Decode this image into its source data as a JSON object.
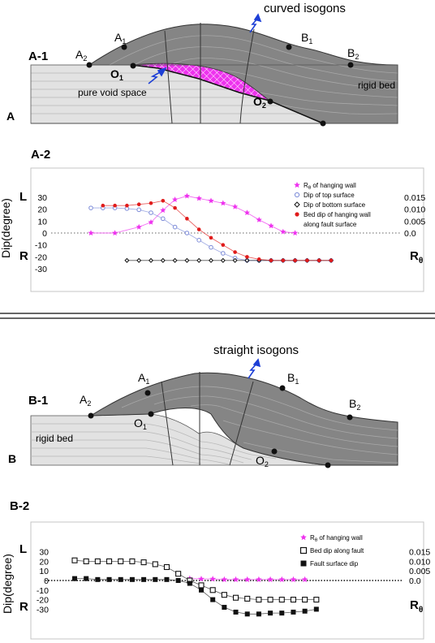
{
  "panel_a": {
    "panel_letter": "A",
    "section_label": "A-1",
    "caption": "curved isogons",
    "void_label": "pure void space",
    "rigid_label": "rigid bed",
    "points": {
      "A1": {
        "base": "A",
        "sub": "1"
      },
      "A2": {
        "base": "A",
        "sub": "2"
      },
      "B1": {
        "base": "B",
        "sub": "1"
      },
      "B2": {
        "base": "B",
        "sub": "2"
      },
      "O1": {
        "base": "O",
        "sub": "1"
      },
      "O2": {
        "base": "O",
        "sub": "2"
      }
    }
  },
  "panel_b": {
    "panel_letter": "B",
    "section_label": "B-1",
    "caption": "straight isogons",
    "rigid_label": "rigid bed",
    "points": {
      "A1": {
        "base": "A",
        "sub": "1"
      },
      "A2": {
        "base": "A",
        "sub": "2"
      },
      "B1": {
        "base": "B",
        "sub": "1"
      },
      "B2": {
        "base": "B",
        "sub": "2"
      },
      "O1": {
        "base": "O",
        "sub": "1"
      },
      "O2": {
        "base": "O",
        "sub": "2"
      }
    }
  },
  "colors": {
    "hanging_wall": "#858585",
    "rigid_bed": "#e2e2e2",
    "void": "#ee33ee",
    "arrow": "#1d3fd6",
    "series_r": "#ee33ee",
    "series_top": "#7b8ad8",
    "series_bed": "#e01b1b",
    "series_bottom": "#111111"
  },
  "chart_data": [
    {
      "id": "A-2",
      "type": "line",
      "title": "A-2",
      "ylabel": "Dip(degree)",
      "ylabel_right_base": "R",
      "ylabel_right_sub": "θ",
      "side_labels": {
        "top": "L",
        "bottom": "R"
      },
      "yticks_left": [
        "30",
        "20",
        "10",
        "0",
        "-10",
        "-20",
        "-30"
      ],
      "yticks_right": [
        "0.015",
        "0.010",
        "0.005",
        "0.0"
      ],
      "ylim": [
        -30,
        30
      ],
      "right_ylim": [
        -0.015,
        0.015
      ],
      "x": [
        0,
        1,
        2,
        3,
        4,
        5,
        6,
        7,
        8,
        9,
        10,
        11,
        12,
        13,
        14,
        15,
        16,
        17,
        18,
        19,
        20
      ],
      "series": [
        {
          "name": "R θ of hanging wall",
          "axis": "right",
          "marker": "star",
          "color": "#ee33ee",
          "x": [
            0,
            2,
            4,
            5,
            6,
            7,
            8,
            9,
            10,
            11,
            12,
            13,
            14,
            15,
            16,
            17
          ],
          "values": [
            0.0,
            0.0,
            0.0025,
            0.0045,
            0.0095,
            0.014,
            0.0155,
            0.0145,
            0.0135,
            0.0125,
            0.011,
            0.0085,
            0.0055,
            0.003,
            0.0005,
            0.0
          ]
        },
        {
          "name": "Dip of top surface",
          "axis": "left",
          "marker": "circle-open",
          "color": "#7b8ad8",
          "x": [
            0,
            1,
            2,
            3,
            4,
            5,
            6,
            7,
            8,
            9,
            10,
            11,
            12,
            13,
            14,
            15,
            16,
            17,
            18,
            19,
            20
          ],
          "values": [
            21,
            21,
            21,
            20.5,
            19.5,
            17,
            12,
            5,
            0,
            -6,
            -12,
            -17,
            -21,
            -23,
            -23,
            -23,
            -23,
            -23,
            -23,
            -23,
            -23
          ]
        },
        {
          "name": "Dip of bottom surface",
          "axis": "left",
          "marker": "diamond-open",
          "color": "#111111",
          "x": [
            3,
            4,
            5,
            6,
            7,
            8,
            9,
            10,
            11,
            12,
            13,
            14,
            15,
            16,
            17,
            18,
            19,
            20
          ],
          "values": [
            -23,
            -23,
            -23,
            -23,
            -23,
            -23,
            -23,
            -23,
            -23,
            -23,
            -23,
            -23,
            -23,
            -23,
            -23,
            -23,
            -23,
            -23
          ]
        },
        {
          "name": "Bed dip of hanging wall along fault surface",
          "axis": "left",
          "marker": "dot",
          "color": "#e01b1b",
          "x": [
            1,
            2,
            3,
            4,
            5,
            6,
            7,
            8,
            9,
            10,
            11,
            12,
            13,
            14,
            15,
            16,
            17,
            18,
            19,
            20
          ],
          "values": [
            23,
            23,
            23,
            24,
            25,
            27,
            21,
            12,
            3,
            -4,
            -10,
            -16,
            -20,
            -22,
            -23,
            -23,
            -23,
            -23,
            -23,
            -23
          ]
        }
      ],
      "legend_lines": [
        {
          "base": "R",
          "sub": "θ",
          "rest": " of hanging wall"
        },
        {
          "base": "Dip of top surface",
          "sub": "",
          "rest": ""
        },
        {
          "base": "Dip of bottom surface",
          "sub": "",
          "rest": ""
        },
        {
          "base": "Bed dip of hanging wall",
          "sub": "",
          "rest": ""
        },
        {
          "base": "along fault surface",
          "sub": "",
          "rest": ""
        }
      ],
      "legend": "top-right",
      "grid": false,
      "zero_line": "dotted"
    },
    {
      "id": "B-2",
      "type": "line",
      "title": "B-2",
      "ylabel": "Dip(degree)",
      "ylabel_right_base": "R",
      "ylabel_right_sub": "θ",
      "side_labels": {
        "top": "L",
        "bottom": "R"
      },
      "yticks_left": [
        "30",
        "20",
        "10",
        "0",
        "-10",
        "-20",
        "-30"
      ],
      "yticks_right": [
        "0.015",
        "0.010",
        "0.005",
        "0.0"
      ],
      "ylim": [
        -35,
        35
      ],
      "right_ylim": [
        -0.0175,
        0.0175
      ],
      "x": [
        0,
        1,
        2,
        3,
        4,
        5,
        6,
        7,
        8,
        9,
        10,
        11,
        12,
        13,
        14,
        15,
        16,
        17,
        18,
        19,
        20,
        21,
        22
      ],
      "series": [
        {
          "name": "R θ of hanging wall",
          "axis": "right",
          "marker": "star",
          "color": "#ee33ee",
          "x": [
            10,
            11,
            12,
            13,
            14,
            15,
            16,
            17,
            18,
            19,
            20
          ],
          "values": [
            0.001,
            0.0008,
            0.0008,
            0.0005,
            0.0005,
            0.0005,
            0.0005,
            0.0005,
            0.0005,
            0.0005,
            0.0005
          ]
        },
        {
          "name": "Bed dip along fault",
          "axis": "left",
          "marker": "square-open",
          "color": "#111111",
          "x": [
            0,
            1,
            2,
            3,
            4,
            5,
            6,
            7,
            8,
            9,
            10,
            11,
            12,
            13,
            14,
            15,
            16,
            17,
            18,
            19,
            20,
            21
          ],
          "values": [
            21,
            20,
            20,
            20,
            20,
            20,
            19,
            17,
            14,
            7,
            0,
            -5,
            -10,
            -15,
            -18,
            -19,
            -20,
            -20,
            -20,
            -20,
            -20,
            -20
          ]
        },
        {
          "name": "Fault surface dip",
          "axis": "left",
          "marker": "square-filled",
          "color": "#111111",
          "x": [
            0,
            1,
            2,
            3,
            4,
            5,
            6,
            7,
            8,
            9,
            10,
            11,
            12,
            13,
            14,
            15,
            16,
            17,
            18,
            19,
            20,
            21
          ],
          "values": [
            2,
            2,
            1,
            1,
            1,
            1,
            1,
            1,
            1,
            0,
            -3,
            -10,
            -20,
            -28,
            -33,
            -35,
            -35,
            -34,
            -34,
            -33,
            -32,
            -30
          ]
        }
      ],
      "legend_lines": [
        {
          "base": "R",
          "sub": "θ",
          "rest": " of hanging wall"
        },
        {
          "base": "Bed dip along fault",
          "sub": "",
          "rest": ""
        },
        {
          "base": "Fault surface dip",
          "sub": "",
          "rest": ""
        }
      ],
      "legend": "top-right",
      "grid": false,
      "zero_line": "dotted"
    }
  ]
}
